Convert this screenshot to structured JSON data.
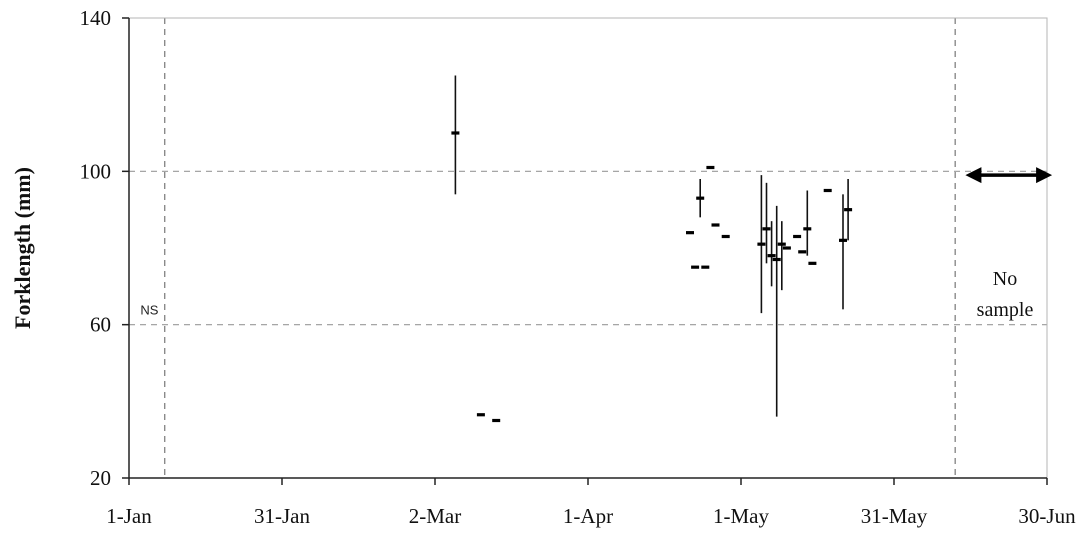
{
  "chart_data": {
    "type": "scatter",
    "title": "",
    "xlabel": "",
    "ylabel": "Forklength (mm)",
    "x_tick_labels": [
      "1-Jan",
      "31-Jan",
      "2-Mar",
      "1-Apr",
      "1-May",
      "31-May",
      "30-Jun"
    ],
    "x_tick_dates": [
      "2014-01-01",
      "2014-01-31",
      "2014-03-02",
      "2014-04-01",
      "2014-05-01",
      "2014-05-31",
      "2014-06-30"
    ],
    "xlim": [
      "2014-01-01",
      "2014-06-30"
    ],
    "y_ticks": [
      20,
      60,
      100,
      140
    ],
    "ylim": [
      20,
      140
    ],
    "grid": {
      "horizontal_at": [
        60,
        100
      ],
      "vertical_at": [
        "2014-01-08",
        "2014-06-12"
      ],
      "style": "dashed"
    },
    "points": [
      {
        "x": "2014-03-06",
        "y": 110,
        "low": 94,
        "high": 125
      },
      {
        "x": "2014-03-11",
        "y": 36.5
      },
      {
        "x": "2014-03-14",
        "y": 35
      },
      {
        "x": "2014-04-21",
        "y": 84
      },
      {
        "x": "2014-04-22",
        "y": 75
      },
      {
        "x": "2014-04-23",
        "y": 93,
        "low": 88,
        "high": 98
      },
      {
        "x": "2014-04-24",
        "y": 75
      },
      {
        "x": "2014-04-25",
        "y": 101
      },
      {
        "x": "2014-04-26",
        "y": 86
      },
      {
        "x": "2014-04-28",
        "y": 83
      },
      {
        "x": "2014-05-05",
        "y": 81,
        "low": 63,
        "high": 99
      },
      {
        "x": "2014-05-06",
        "y": 85,
        "low": 76,
        "high": 97
      },
      {
        "x": "2014-05-07",
        "y": 78,
        "low": 70,
        "high": 87
      },
      {
        "x": "2014-05-08",
        "y": 77,
        "low": 36,
        "high": 91
      },
      {
        "x": "2014-05-09",
        "y": 81,
        "low": 69,
        "high": 87
      },
      {
        "x": "2014-05-10",
        "y": 80
      },
      {
        "x": "2014-05-12",
        "y": 83
      },
      {
        "x": "2014-05-13",
        "y": 79
      },
      {
        "x": "2014-05-14",
        "y": 85,
        "low": 78,
        "high": 95
      },
      {
        "x": "2014-05-15",
        "y": 76
      },
      {
        "x": "2014-05-18",
        "y": 95
      },
      {
        "x": "2014-05-21",
        "y": 82,
        "low": 64,
        "high": 94
      },
      {
        "x": "2014-05-22",
        "y": 90,
        "low": 82,
        "high": 98
      }
    ],
    "annotations": [
      {
        "text": "NS",
        "x": "2014-01-05",
        "y": 64
      },
      {
        "lines": [
          "No",
          "sample"
        ],
        "x": "2014-06-20",
        "y": 67
      }
    ],
    "range_arrow": {
      "from": "2014-06-14",
      "to": "2014-07-01",
      "y": 99
    }
  }
}
